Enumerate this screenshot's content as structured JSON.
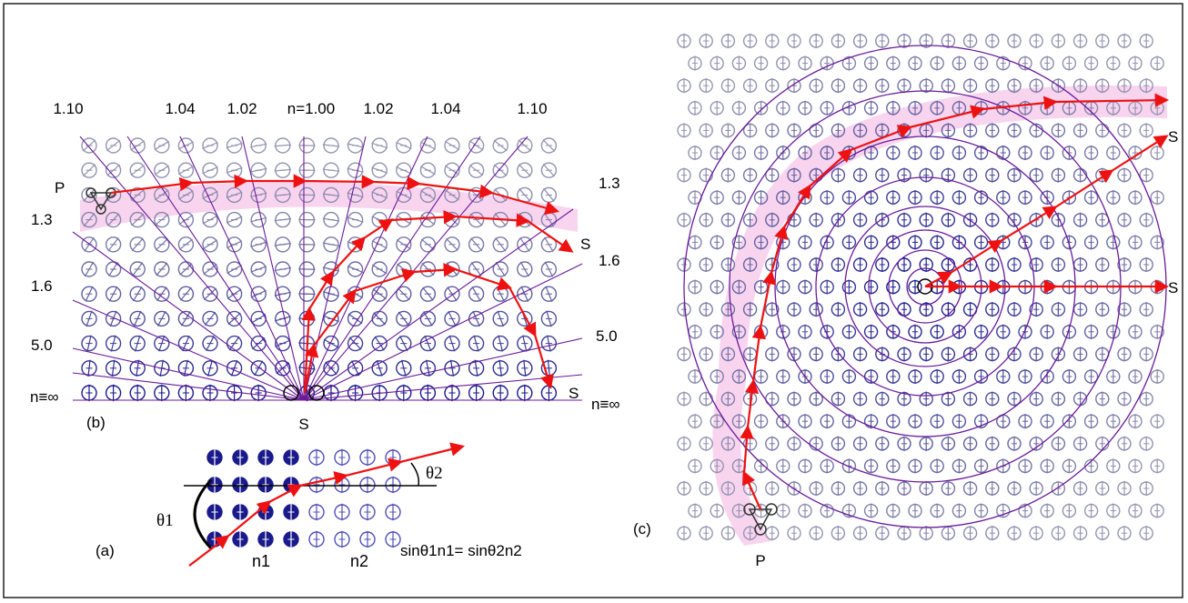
{
  "panel_b": {
    "caption": "(b)",
    "point_p": "P",
    "source_s": "S",
    "end_labels": [
      "S",
      "S",
      "S"
    ],
    "top_index_labels": [
      "1.10",
      "1.04",
      "1.02",
      "n=1.00",
      "1.02",
      "1.04",
      "1.10"
    ],
    "left_index_labels": [
      "1.3",
      "1.6",
      "5.0",
      "n≡∞"
    ],
    "right_index_labels": [
      "1.3",
      "1.6",
      "5.0",
      "n≡∞"
    ]
  },
  "panel_a": {
    "caption": "(a)",
    "theta1": "θ1",
    "theta2": "θ2",
    "n1": "n1",
    "n2": "n2",
    "snell_law": "sinθ1n1= sinθ2n2"
  },
  "panel_c": {
    "caption": "(c)",
    "point_p": "P",
    "end_labels": [
      "S",
      "S"
    ]
  },
  "colors": {
    "ray": "#ee1111",
    "lines": "#6a1b9a",
    "dipole_dark": "#1a1a8c",
    "dipole_light": "#9c9cb4",
    "highlight": "#f6c6ea"
  }
}
